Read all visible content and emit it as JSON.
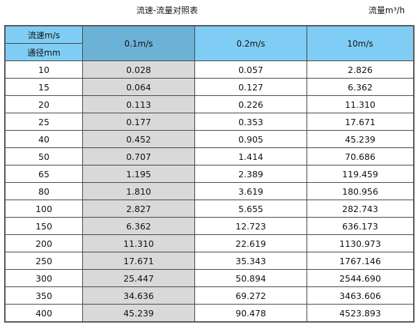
{
  "title": "流速-流量对照表",
  "unit_label": "流量m³/h",
  "header": {
    "velocity_label": "流速m/s",
    "diameter_label": "通径mm",
    "columns": [
      "0.1m/s",
      "0.2m/s",
      "10m/s"
    ]
  },
  "colors": {
    "header": "#7fcdf5",
    "selected_header": "#6cb2d6",
    "highlight_column": "#d9d9d9"
  },
  "rows": [
    [
      "10",
      "0.028",
      "0.057",
      "2.826"
    ],
    [
      "15",
      "0.064",
      "0.127",
      "6.362"
    ],
    [
      "20",
      "0.113",
      "0.226",
      "11.310"
    ],
    [
      "25",
      "0.177",
      "0.353",
      "17.671"
    ],
    [
      "40",
      "0.452",
      "0.905",
      "45.239"
    ],
    [
      "50",
      "0.707",
      "1.414",
      "70.686"
    ],
    [
      "65",
      "1.195",
      "2.389",
      "119.459"
    ],
    [
      "80",
      "1.810",
      "3.619",
      "180.956"
    ],
    [
      "100",
      "2.827",
      "5.655",
      "282.743"
    ],
    [
      "150",
      "6.362",
      "12.723",
      "636.173"
    ],
    [
      "200",
      "11.310",
      "22.619",
      "1130.973"
    ],
    [
      "250",
      "17.671",
      "35.343",
      "1767.146"
    ],
    [
      "300",
      "25.447",
      "50.894",
      "2544.690"
    ],
    [
      "350",
      "34.636",
      "69.272",
      "3463.606"
    ],
    [
      "400",
      "45.239",
      "90.478",
      "4523.893"
    ]
  ]
}
